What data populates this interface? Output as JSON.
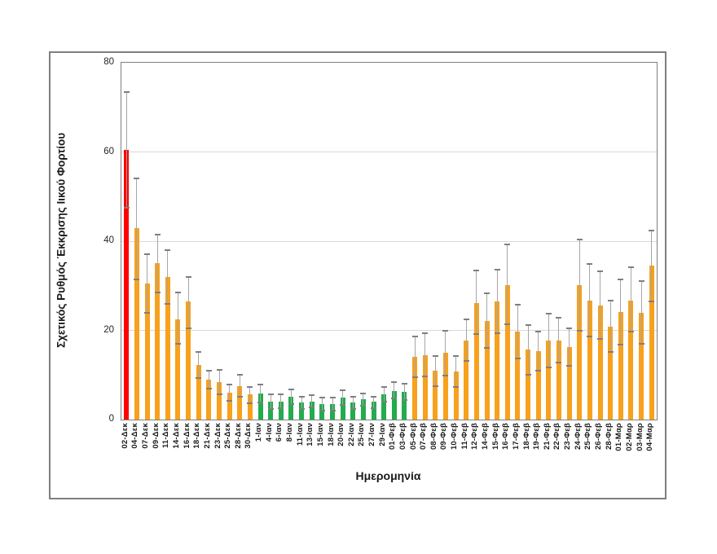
{
  "chart_data": {
    "type": "bar",
    "title": "",
    "xlabel": "Ημερομηνία",
    "ylabel": "Σχετικός Ρυθμός Έκκρισης Ιικού Φορτίου",
    "ylim": [
      0,
      80
    ],
    "y_ticks": [
      0,
      20,
      40,
      60,
      80
    ],
    "grid": true,
    "legend": false,
    "error_bars": true,
    "bar_colors": {
      "red": "#fe0000",
      "orange": "#f7a11c",
      "green": "#22ac4e"
    },
    "error_bar_colors": {
      "line": "#a6a6a6",
      "cap": "#7f7f7f"
    },
    "categories": [
      "02-Δεκ",
      "04-Δεκ",
      "07-Δεκ",
      "09-Δεκ",
      "11-Δεκ",
      "14-Δεκ",
      "16-Δεκ",
      "18-Δεκ",
      "21-Δεκ",
      "23-Δεκ",
      "25-Δεκ",
      "28-Δεκ",
      "30-Δεκ",
      "1-Ιαν",
      "4-Ιαν",
      "6-Ιαν",
      "8-Ιαν",
      "11-Ιαν",
      "13-Ιαν",
      "15-Ιαν",
      "18-Ιαν",
      "20-Ιαν",
      "22-Ιαν",
      "25-Ιαν",
      "27-Ιαν",
      "29-Ιαν",
      "01-Φεβ",
      "03-Φεβ",
      "05-Φεβ",
      "07-Φεβ",
      "08-Φεβ",
      "09-Φεβ",
      "10-Φεβ",
      "11-Φεβ",
      "12-Φεβ",
      "14-Φεβ",
      "15-Φεβ",
      "16-Φεβ",
      "17-Φεβ",
      "18-Φεβ",
      "19-Φεβ",
      "21-Φεβ",
      "22-Φεβ",
      "23-Φεβ",
      "24-Φεβ",
      "25-Φεβ",
      "26-Φεβ",
      "28-Φεβ",
      "01-Μαρ",
      "02-Μαρ",
      "03-Μαρ",
      "04-Μαρ"
    ],
    "values": [
      60.5,
      43,
      30.5,
      35,
      32,
      22.5,
      26.5,
      12.2,
      9,
      8.4,
      6,
      7.5,
      5.7,
      5.8,
      4,
      4.1,
      5.1,
      3.8,
      4.1,
      3.5,
      3.5,
      5,
      3.9,
      4.5,
      4,
      5.7,
      6.4,
      6.2,
      14,
      14.5,
      10.9,
      15,
      10.8,
      17.7,
      26.2,
      22.1,
      26.4,
      30.2,
      19.7,
      15.7,
      15.4,
      17.7,
      17.7,
      16.3,
      30.2,
      26.7,
      25.6,
      20.9,
      24.1,
      26.7,
      24,
      34.5
    ],
    "error_low": [
      47.5,
      31.5,
      24,
      28.5,
      26,
      17,
      20.5,
      9.3,
      7,
      5.7,
      4.2,
      5.2,
      3.7,
      3.9,
      2.4,
      2.5,
      3.5,
      2.3,
      2.7,
      2.1,
      2,
      3.3,
      2.4,
      3.1,
      2.5,
      4.1,
      4.7,
      4.4,
      9.5,
      9.6,
      7.5,
      9.8,
      7.3,
      13.1,
      19.1,
      16,
      19.3,
      21.4,
      13.7,
      10,
      11,
      11.7,
      12.7,
      12.1,
      20,
      18.6,
      18,
      15.1,
      16.8,
      19.7,
      16.9,
      26.5
    ],
    "error_high": [
      73.5,
      54,
      37,
      41.5,
      38,
      28.5,
      32,
      15.2,
      11,
      11.2,
      7.8,
      10,
      7.4,
      7.9,
      5.6,
      5.6,
      6.8,
      5.2,
      5.5,
      4.9,
      5,
      6.5,
      5.2,
      5.8,
      5.2,
      7.4,
      8.4,
      8,
      18.6,
      19.4,
      14.2,
      20,
      14.3,
      22.4,
      33.4,
      28.4,
      33.6,
      39.3,
      25.8,
      21.2,
      19.8,
      23.8,
      22.9,
      20.4,
      40.4,
      34.8,
      33.3,
      26.7,
      31.4,
      34.2,
      31.1,
      42.4
    ],
    "colors": [
      "red",
      "orange",
      "orange",
      "orange",
      "orange",
      "orange",
      "orange",
      "orange",
      "orange",
      "orange",
      "orange",
      "orange",
      "orange",
      "green",
      "green",
      "green",
      "green",
      "green",
      "green",
      "green",
      "green",
      "green",
      "green",
      "green",
      "green",
      "green",
      "green",
      "green",
      "orange",
      "orange",
      "orange",
      "orange",
      "orange",
      "orange",
      "orange",
      "orange",
      "orange",
      "orange",
      "orange",
      "orange",
      "orange",
      "orange",
      "orange",
      "orange",
      "orange",
      "orange",
      "orange",
      "orange",
      "orange",
      "orange",
      "orange",
      "orange"
    ]
  }
}
